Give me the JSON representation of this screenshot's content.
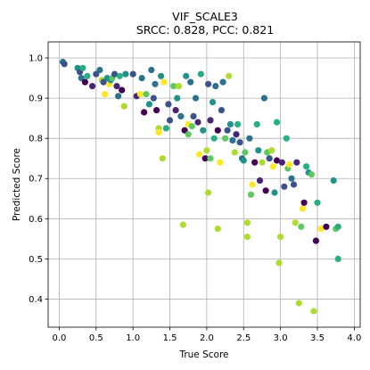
{
  "chart_data": {
    "type": "scatter",
    "title": "VIF_SCALE3",
    "subtitle": "SRCC: 0.828, PCC: 0.821",
    "xlabel": "True Score",
    "ylabel": "Predicted Score",
    "xlim": [
      -0.15,
      4.08
    ],
    "ylim": [
      0.33,
      1.04
    ],
    "xticks": [
      "0.0",
      "0.5",
      "1.0",
      "1.5",
      "2.0",
      "2.5",
      "3.0",
      "3.5",
      "4.0"
    ],
    "yticks": [
      "0.4",
      "0.5",
      "0.6",
      "0.7",
      "0.8",
      "0.9",
      "1.0"
    ],
    "grid": true,
    "colormap": "viridis",
    "palette": {
      "dark_purple": "#440154",
      "purple": "#482475",
      "blue": "#3b528b",
      "teal_blue": "#2c728e",
      "teal": "#21918c",
      "green_teal": "#28ae80",
      "green": "#5ec962",
      "lime": "#addc30",
      "yellow": "#fde725"
    },
    "points": [
      {
        "x": 0.05,
        "y": 0.99,
        "c": "teal_blue"
      },
      {
        "x": 0.07,
        "y": 0.985,
        "c": "blue"
      },
      {
        "x": 0.25,
        "y": 0.975,
        "c": "teal"
      },
      {
        "x": 0.28,
        "y": 0.965,
        "c": "blue"
      },
      {
        "x": 0.3,
        "y": 0.95,
        "c": "teal_blue"
      },
      {
        "x": 0.32,
        "y": 0.975,
        "c": "green_teal"
      },
      {
        "x": 0.35,
        "y": 0.94,
        "c": "dark_purple"
      },
      {
        "x": 0.38,
        "y": 0.955,
        "c": "green_teal"
      },
      {
        "x": 0.45,
        "y": 0.93,
        "c": "purple"
      },
      {
        "x": 0.5,
        "y": 0.96,
        "c": "blue"
      },
      {
        "x": 0.55,
        "y": 0.97,
        "c": "teal_blue"
      },
      {
        "x": 0.58,
        "y": 0.945,
        "c": "lime"
      },
      {
        "x": 0.6,
        "y": 0.94,
        "c": "blue"
      },
      {
        "x": 0.62,
        "y": 0.91,
        "c": "yellow"
      },
      {
        "x": 0.65,
        "y": 0.95,
        "c": "teal"
      },
      {
        "x": 0.68,
        "y": 0.935,
        "c": "yellow"
      },
      {
        "x": 0.7,
        "y": 0.945,
        "c": "teal"
      },
      {
        "x": 0.72,
        "y": 0.95,
        "c": "green"
      },
      {
        "x": 0.75,
        "y": 0.96,
        "c": "blue"
      },
      {
        "x": 0.78,
        "y": 0.93,
        "c": "purple"
      },
      {
        "x": 0.8,
        "y": 0.905,
        "c": "teal_blue"
      },
      {
        "x": 0.82,
        "y": 0.955,
        "c": "green_teal"
      },
      {
        "x": 0.85,
        "y": 0.92,
        "c": "dark_purple"
      },
      {
        "x": 0.88,
        "y": 0.88,
        "c": "lime"
      },
      {
        "x": 0.9,
        "y": 0.96,
        "c": "teal"
      },
      {
        "x": 1.0,
        "y": 0.96,
        "c": "blue"
      },
      {
        "x": 1.05,
        "y": 0.905,
        "c": "purple"
      },
      {
        "x": 1.1,
        "y": 0.91,
        "c": "yellow"
      },
      {
        "x": 1.12,
        "y": 0.95,
        "c": "teal_blue"
      },
      {
        "x": 1.15,
        "y": 0.865,
        "c": "dark_purple"
      },
      {
        "x": 1.18,
        "y": 0.91,
        "c": "green"
      },
      {
        "x": 1.22,
        "y": 0.885,
        "c": "teal"
      },
      {
        "x": 1.25,
        "y": 0.97,
        "c": "teal_blue"
      },
      {
        "x": 1.28,
        "y": 0.9,
        "c": "blue"
      },
      {
        "x": 1.3,
        "y": 0.935,
        "c": "teal_blue"
      },
      {
        "x": 1.32,
        "y": 0.87,
        "c": "dark_purple"
      },
      {
        "x": 1.35,
        "y": 0.825,
        "c": "lime"
      },
      {
        "x": 1.35,
        "y": 0.815,
        "c": "yellow"
      },
      {
        "x": 1.38,
        "y": 0.955,
        "c": "teal"
      },
      {
        "x": 1.4,
        "y": 0.75,
        "c": "lime"
      },
      {
        "x": 1.42,
        "y": 0.94,
        "c": "yellow"
      },
      {
        "x": 1.45,
        "y": 0.825,
        "c": "green_teal"
      },
      {
        "x": 1.48,
        "y": 0.885,
        "c": "blue"
      },
      {
        "x": 1.5,
        "y": 0.845,
        "c": "blue"
      },
      {
        "x": 1.55,
        "y": 0.93,
        "c": "green"
      },
      {
        "x": 1.58,
        "y": 0.87,
        "c": "purple"
      },
      {
        "x": 1.6,
        "y": 0.9,
        "c": "teal"
      },
      {
        "x": 1.62,
        "y": 0.93,
        "c": "lime"
      },
      {
        "x": 1.65,
        "y": 0.855,
        "c": "teal_blue"
      },
      {
        "x": 1.68,
        "y": 0.585,
        "c": "lime"
      },
      {
        "x": 1.7,
        "y": 0.82,
        "c": "dark_purple"
      },
      {
        "x": 1.72,
        "y": 0.955,
        "c": "teal"
      },
      {
        "x": 1.75,
        "y": 0.835,
        "c": "yellow"
      },
      {
        "x": 1.75,
        "y": 0.81,
        "c": "green"
      },
      {
        "x": 1.78,
        "y": 0.94,
        "c": "teal_blue"
      },
      {
        "x": 1.8,
        "y": 0.83,
        "c": "green"
      },
      {
        "x": 1.82,
        "y": 0.855,
        "c": "blue"
      },
      {
        "x": 1.85,
        "y": 0.9,
        "c": "teal_blue"
      },
      {
        "x": 1.88,
        "y": 0.84,
        "c": "purple"
      },
      {
        "x": 1.9,
        "y": 0.76,
        "c": "yellow"
      },
      {
        "x": 1.92,
        "y": 0.96,
        "c": "green_teal"
      },
      {
        "x": 1.95,
        "y": 0.82,
        "c": "teal"
      },
      {
        "x": 1.98,
        "y": 0.75,
        "c": "dark_purple"
      },
      {
        "x": 2.0,
        "y": 0.77,
        "c": "lime"
      },
      {
        "x": 2.02,
        "y": 0.665,
        "c": "lime"
      },
      {
        "x": 2.02,
        "y": 0.935,
        "c": "blue"
      },
      {
        "x": 2.05,
        "y": 0.845,
        "c": "purple"
      },
      {
        "x": 2.05,
        "y": 0.75,
        "c": "green"
      },
      {
        "x": 2.08,
        "y": 0.89,
        "c": "teal"
      },
      {
        "x": 2.1,
        "y": 0.8,
        "c": "green_teal"
      },
      {
        "x": 2.12,
        "y": 0.93,
        "c": "teal_blue"
      },
      {
        "x": 2.15,
        "y": 0.82,
        "c": "dark_purple"
      },
      {
        "x": 2.15,
        "y": 0.575,
        "c": "lime"
      },
      {
        "x": 2.18,
        "y": 0.74,
        "c": "yellow"
      },
      {
        "x": 2.2,
        "y": 0.87,
        "c": "blue"
      },
      {
        "x": 2.22,
        "y": 0.94,
        "c": "teal_blue"
      },
      {
        "x": 2.25,
        "y": 0.8,
        "c": "green"
      },
      {
        "x": 2.28,
        "y": 0.82,
        "c": "blue"
      },
      {
        "x": 2.3,
        "y": 0.955,
        "c": "lime"
      },
      {
        "x": 2.32,
        "y": 0.835,
        "c": "teal"
      },
      {
        "x": 2.35,
        "y": 0.795,
        "c": "teal_blue"
      },
      {
        "x": 2.38,
        "y": 0.765,
        "c": "lime"
      },
      {
        "x": 2.4,
        "y": 0.81,
        "c": "purple"
      },
      {
        "x": 2.42,
        "y": 0.835,
        "c": "green_teal"
      },
      {
        "x": 2.45,
        "y": 0.79,
        "c": "blue"
      },
      {
        "x": 2.48,
        "y": 0.75,
        "c": "teal_blue"
      },
      {
        "x": 2.5,
        "y": 0.745,
        "c": "teal"
      },
      {
        "x": 2.52,
        "y": 0.765,
        "c": "green"
      },
      {
        "x": 2.55,
        "y": 0.59,
        "c": "lime"
      },
      {
        "x": 2.55,
        "y": 0.555,
        "c": "lime"
      },
      {
        "x": 2.58,
        "y": 0.8,
        "c": "teal_blue"
      },
      {
        "x": 2.6,
        "y": 0.66,
        "c": "green"
      },
      {
        "x": 2.62,
        "y": 0.685,
        "c": "yellow"
      },
      {
        "x": 2.65,
        "y": 0.74,
        "c": "dark_purple"
      },
      {
        "x": 2.68,
        "y": 0.835,
        "c": "green_teal"
      },
      {
        "x": 2.7,
        "y": 0.77,
        "c": "teal"
      },
      {
        "x": 2.72,
        "y": 0.695,
        "c": "purple"
      },
      {
        "x": 2.75,
        "y": 0.74,
        "c": "lime"
      },
      {
        "x": 2.78,
        "y": 0.9,
        "c": "teal_blue"
      },
      {
        "x": 2.8,
        "y": 0.67,
        "c": "dark_purple"
      },
      {
        "x": 2.82,
        "y": 0.765,
        "c": "green"
      },
      {
        "x": 2.85,
        "y": 0.75,
        "c": "blue"
      },
      {
        "x": 2.88,
        "y": 0.77,
        "c": "lime"
      },
      {
        "x": 2.9,
        "y": 0.73,
        "c": "yellow"
      },
      {
        "x": 2.92,
        "y": 0.665,
        "c": "teal"
      },
      {
        "x": 2.95,
        "y": 0.84,
        "c": "green_teal"
      },
      {
        "x": 2.95,
        "y": 0.745,
        "c": "dark_purple"
      },
      {
        "x": 2.98,
        "y": 0.49,
        "c": "lime"
      },
      {
        "x": 3.0,
        "y": 0.555,
        "c": "lime"
      },
      {
        "x": 3.02,
        "y": 0.74,
        "c": "purple"
      },
      {
        "x": 3.05,
        "y": 0.68,
        "c": "blue"
      },
      {
        "x": 3.08,
        "y": 0.8,
        "c": "green_teal"
      },
      {
        "x": 3.1,
        "y": 0.725,
        "c": "green"
      },
      {
        "x": 3.12,
        "y": 0.735,
        "c": "yellow"
      },
      {
        "x": 3.15,
        "y": 0.7,
        "c": "teal_blue"
      },
      {
        "x": 3.18,
        "y": 0.685,
        "c": "blue"
      },
      {
        "x": 3.2,
        "y": 0.59,
        "c": "lime"
      },
      {
        "x": 3.22,
        "y": 0.74,
        "c": "purple"
      },
      {
        "x": 3.25,
        "y": 0.39,
        "c": "lime"
      },
      {
        "x": 3.28,
        "y": 0.58,
        "c": "green"
      },
      {
        "x": 3.3,
        "y": 0.625,
        "c": "yellow"
      },
      {
        "x": 3.32,
        "y": 0.64,
        "c": "dark_purple"
      },
      {
        "x": 3.35,
        "y": 0.73,
        "c": "green_teal"
      },
      {
        "x": 3.38,
        "y": 0.715,
        "c": "teal"
      },
      {
        "x": 3.42,
        "y": 0.71,
        "c": "green"
      },
      {
        "x": 3.45,
        "y": 0.37,
        "c": "lime"
      },
      {
        "x": 3.48,
        "y": 0.545,
        "c": "dark_purple"
      },
      {
        "x": 3.5,
        "y": 0.64,
        "c": "green_teal"
      },
      {
        "x": 3.55,
        "y": 0.575,
        "c": "yellow"
      },
      {
        "x": 3.62,
        "y": 0.58,
        "c": "dark_purple"
      },
      {
        "x": 3.72,
        "y": 0.695,
        "c": "teal"
      },
      {
        "x": 3.75,
        "y": 0.575,
        "c": "green"
      },
      {
        "x": 3.78,
        "y": 0.58,
        "c": "green_teal"
      },
      {
        "x": 3.78,
        "y": 0.5,
        "c": "green_teal"
      }
    ]
  }
}
